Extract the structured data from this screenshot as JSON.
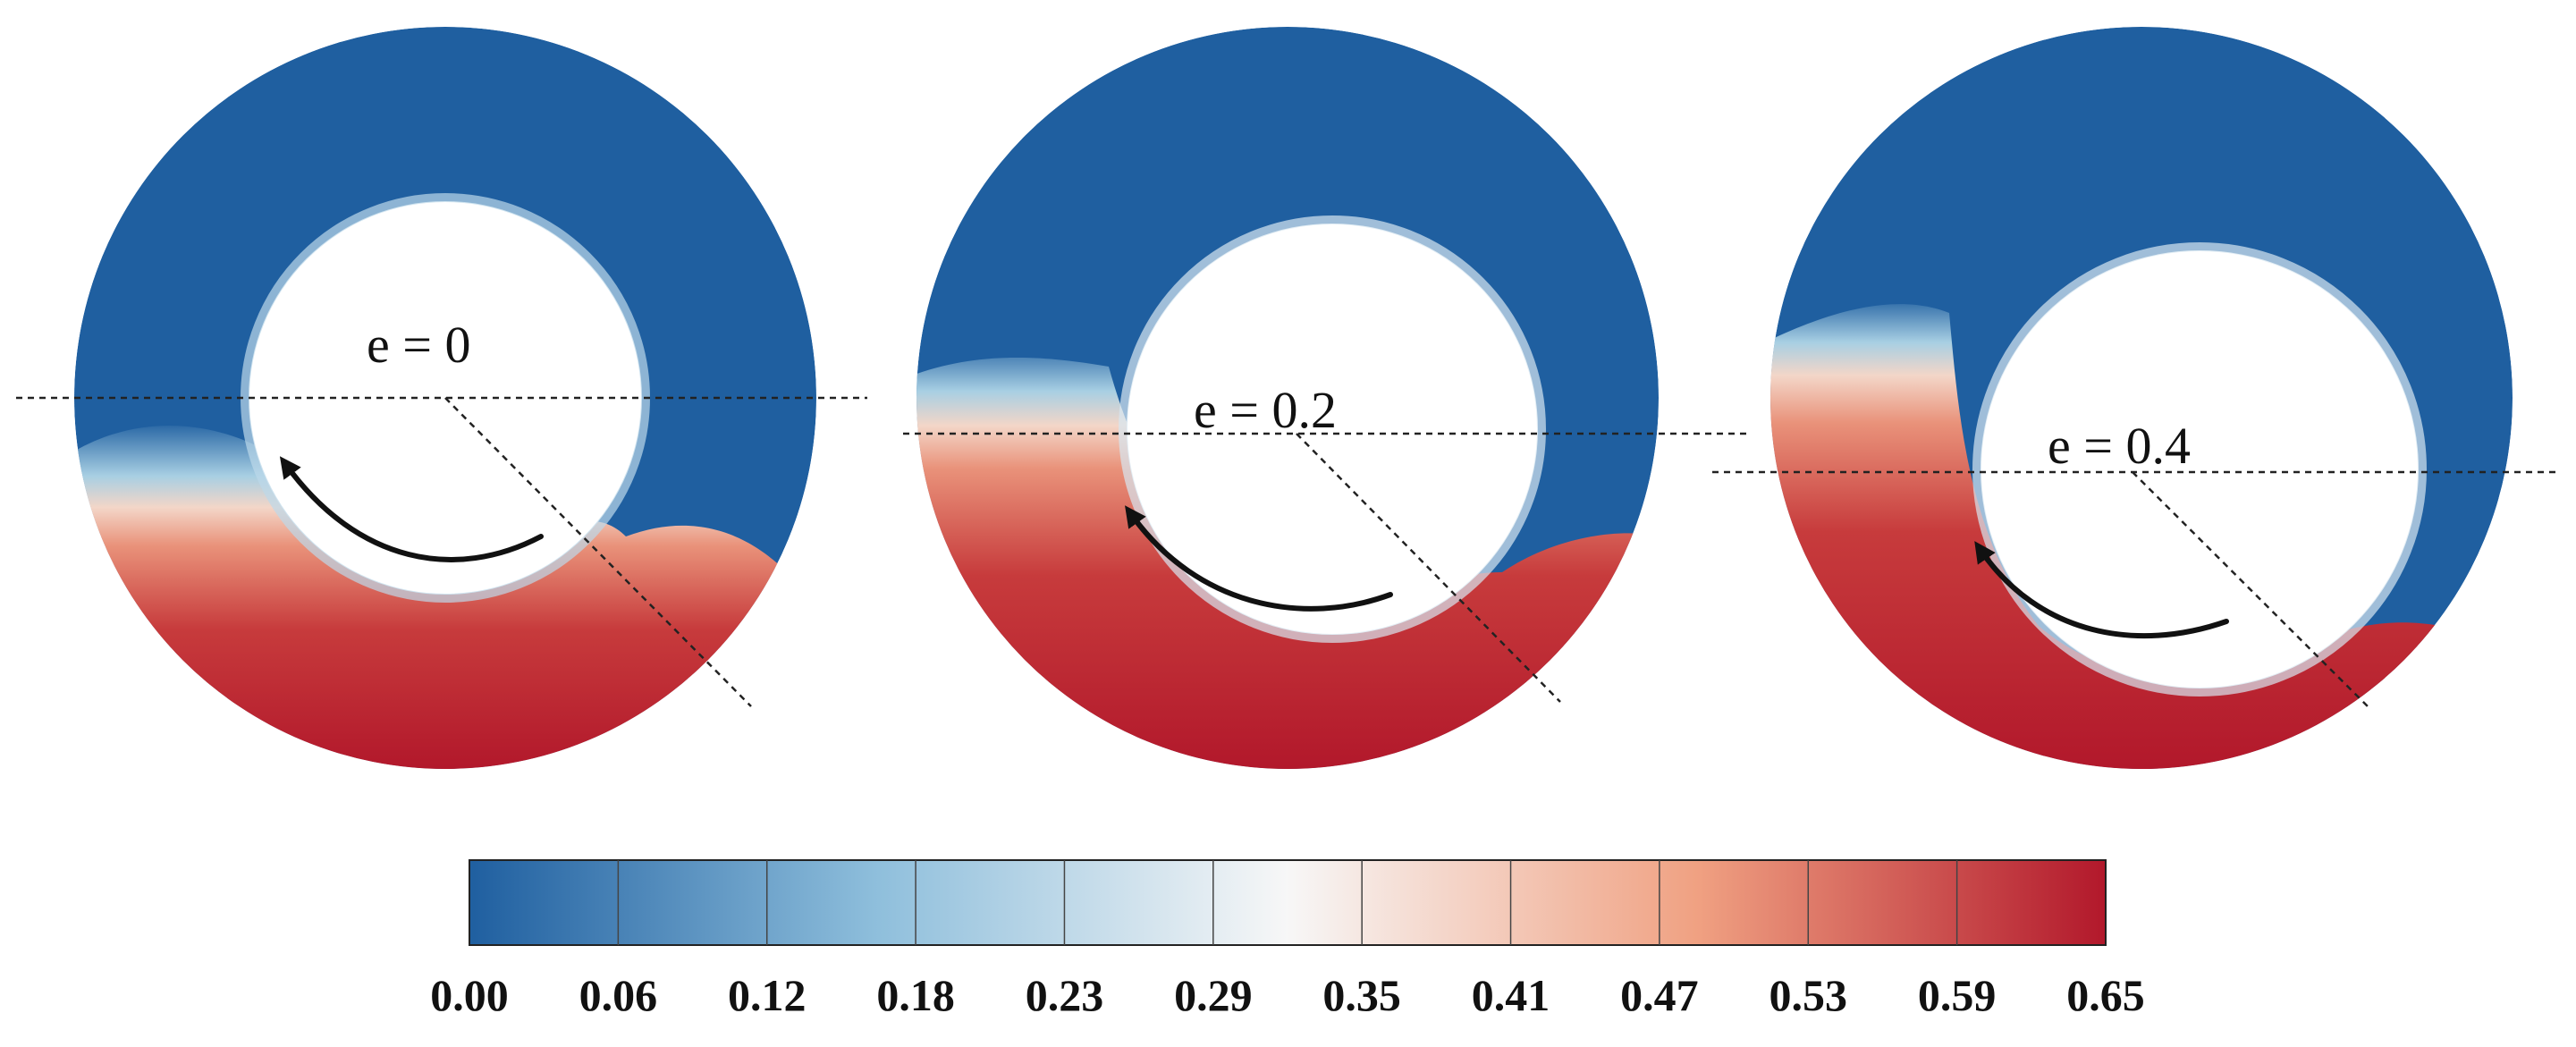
{
  "panels": [
    {
      "label": "e = 0",
      "eccentricity": 0
    },
    {
      "label": "e = 0.2",
      "eccentricity": 0.2
    },
    {
      "label": "e = 0.4",
      "eccentricity": 0.4
    }
  ],
  "colorbar": {
    "ticks": [
      "0.00",
      "0.06",
      "0.12",
      "0.18",
      "0.23",
      "0.29",
      "0.35",
      "0.41",
      "0.47",
      "0.53",
      "0.59",
      "0.65"
    ],
    "min": 0.0,
    "max": 0.65,
    "colors": {
      "low": "#1f5fa0",
      "mid_low": "#a8cfe3",
      "mid": "#f5f5f5",
      "mid_high": "#f1b49a",
      "high": "#b2182b"
    }
  },
  "rotation_direction": "counterclockwise-arrow"
}
